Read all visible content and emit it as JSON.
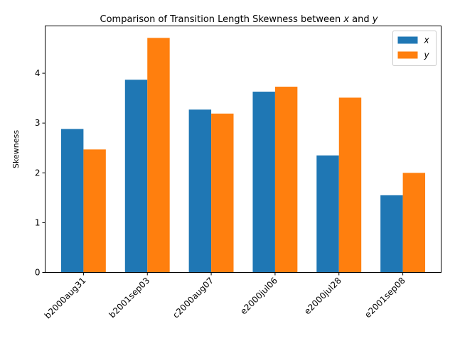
{
  "chart_data": {
    "type": "bar",
    "title": {
      "prefix": "Comparison of Transition Length Skewness between ",
      "var1": "x",
      "middle": " and ",
      "var2": "y"
    },
    "xlabel": "",
    "ylabel": "Skewness",
    "categories": [
      "b2000aug31",
      "b2001sep03",
      "c2000aug07",
      "e2000jul06",
      "e2000jul28",
      "e2001sep08"
    ],
    "series": [
      {
        "name": "x",
        "color": "#1f77b4",
        "values": [
          2.88,
          3.87,
          3.27,
          3.63,
          2.35,
          1.55
        ]
      },
      {
        "name": "y",
        "color": "#ff7f0e",
        "values": [
          2.47,
          4.71,
          3.19,
          3.73,
          3.51,
          2.0
        ]
      }
    ],
    "ylim": [
      0,
      4.95
    ],
    "yticks": [
      0,
      1,
      2,
      3,
      4
    ],
    "grid": false,
    "legend": "top-right"
  }
}
